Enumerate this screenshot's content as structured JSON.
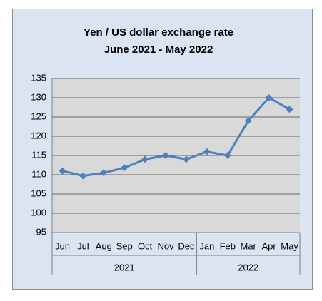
{
  "chart_data": {
    "type": "line",
    "title": "Yen / US dollar exchange rate",
    "subtitle": "June 2021  -  May 2022",
    "groups": [
      {
        "name": "2021",
        "categories": [
          "Jun",
          "Jul",
          "Aug",
          "Sep",
          "Oct",
          "Nov",
          "Dec"
        ]
      },
      {
        "name": "2022",
        "categories": [
          "Jan",
          "Feb",
          "Mar",
          "Apr",
          "May"
        ]
      }
    ],
    "series": [
      {
        "color": "#4f81bd",
        "values": [
          111,
          109.7,
          110.5,
          111.8,
          114,
          115,
          114,
          116,
          115,
          124,
          130,
          127
        ]
      }
    ],
    "ylim": [
      95,
      135
    ],
    "yticks": [
      95,
      100,
      105,
      110,
      115,
      120,
      125,
      130,
      135
    ],
    "grid": true
  }
}
